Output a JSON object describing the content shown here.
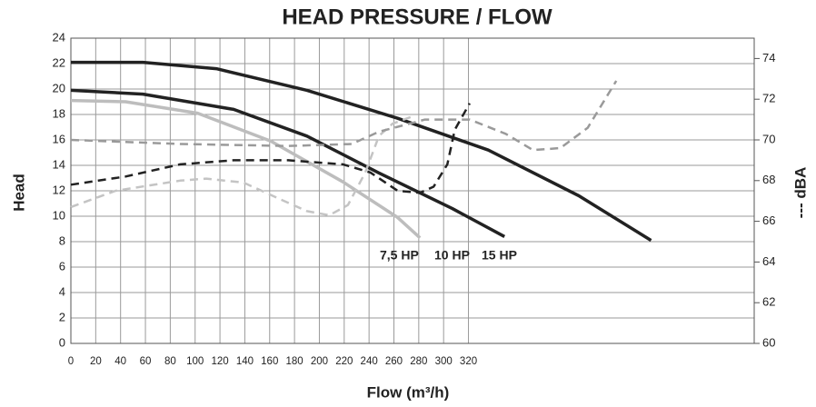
{
  "chart_data": {
    "type": "line",
    "title": "HEAD PRESSURE / FLOW",
    "x_label": "Flow (m³/h)",
    "y_label": "Head",
    "y2_label": "--- dBA",
    "xlim": [
      0,
      550
    ],
    "xticks": [
      0,
      20,
      40,
      60,
      80,
      100,
      120,
      140,
      160,
      180,
      200,
      220,
      240,
      260,
      280,
      300,
      320
    ],
    "ylim": [
      0,
      24
    ],
    "yticks": [
      0,
      2,
      4,
      6,
      8,
      10,
      12,
      14,
      16,
      18,
      20,
      22,
      24
    ],
    "y2lim": [
      60,
      75
    ],
    "y2ticks": [
      60,
      62,
      64,
      66,
      68,
      70,
      72,
      74
    ],
    "grid": true,
    "series": [
      {
        "name": "7,5 HP",
        "color": "#bdbdbd",
        "dash": false,
        "x": [
          0,
          44,
          102,
          161,
          219,
          263,
          281
        ],
        "values": [
          19.1,
          19.0,
          18.1,
          15.9,
          12.7,
          9.9,
          8.3
        ]
      },
      {
        "name": "10 HP",
        "color": "#222222",
        "dash": false,
        "x": [
          0,
          58,
          131,
          190,
          248,
          307,
          349
        ],
        "values": [
          19.9,
          19.6,
          18.4,
          16.3,
          13.4,
          10.6,
          8.4
        ]
      },
      {
        "name": "15 HP",
        "color": "#222222",
        "dash": false,
        "x": [
          0,
          58,
          117,
          190,
          263,
          336,
          409,
          467
        ],
        "values": [
          22.1,
          22.1,
          21.6,
          19.9,
          17.7,
          15.2,
          11.6,
          8.1
        ]
      },
      {
        "color": "#c4c4c4",
        "dash": true,
        "axis": "y2",
        "x": [
          0,
          36,
          88,
          109,
          139,
          168,
          190,
          208,
          223,
          237,
          248,
          259,
          277
        ],
        "values": [
          66.7,
          67.5,
          68.0,
          68.1,
          67.9,
          67.1,
          66.5,
          66.3,
          66.8,
          68.4,
          70.2,
          70.8,
          71.2
        ]
      },
      {
        "color": "#222222",
        "dash": true,
        "axis": "y2",
        "x": [
          0,
          44,
          88,
          131,
          175,
          219,
          241,
          263,
          281,
          292,
          303,
          309,
          321
        ],
        "values": [
          67.8,
          68.2,
          68.8,
          69.0,
          69.0,
          68.8,
          68.4,
          67.5,
          67.4,
          67.7,
          68.8,
          70.5,
          71.8
        ]
      },
      {
        "color": "#9a9a9a",
        "dash": true,
        "axis": "y2",
        "x": [
          0,
          88,
          175,
          226,
          248,
          285,
          321,
          350,
          372,
          394,
          416,
          439
        ],
        "values": [
          70.0,
          69.8,
          69.7,
          69.8,
          70.4,
          71.0,
          71.0,
          70.3,
          69.5,
          69.6,
          70.6,
          72.9
        ]
      }
    ]
  }
}
